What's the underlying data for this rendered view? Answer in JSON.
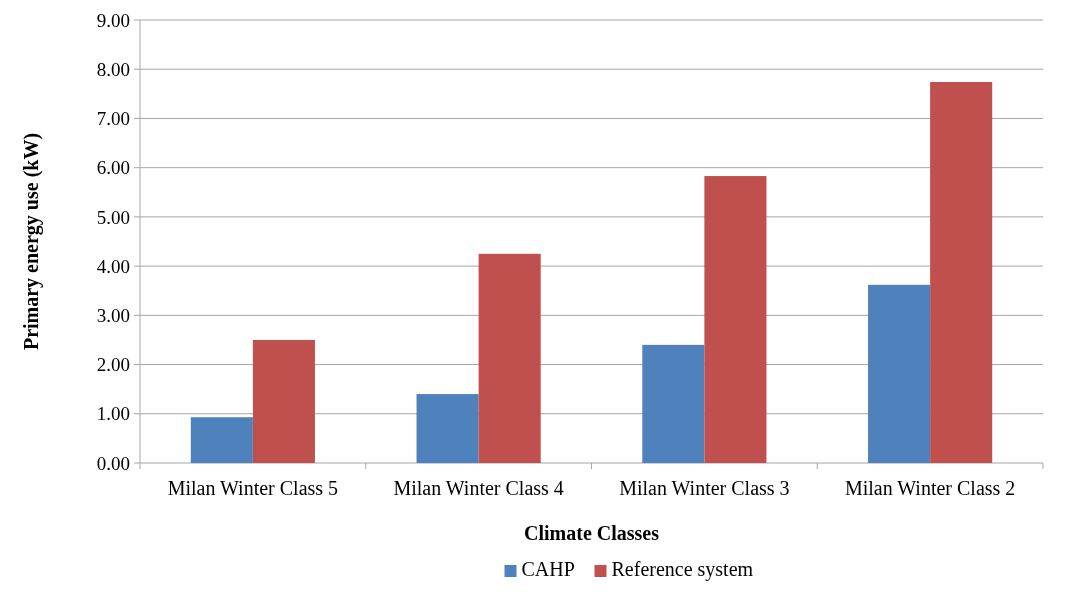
{
  "chart_data": {
    "type": "bar",
    "xlabel": "Climate Classes",
    "ylabel": "Primary energy use (kW)",
    "categories": [
      "Milan Winter Class 5",
      "Milan Winter Class 4",
      "Milan Winter Class 3",
      "Milan Winter Class 2"
    ],
    "series": [
      {
        "name": "CAHP",
        "color": "#4f81bd",
        "values": [
          0.93,
          1.4,
          2.4,
          3.62
        ]
      },
      {
        "name": "Reference system",
        "color": "#c0504d",
        "values": [
          2.5,
          4.25,
          5.83,
          7.74
        ]
      }
    ],
    "ylim": [
      0,
      9
    ],
    "yticks": [
      {
        "value": 0,
        "label": "0.00"
      },
      {
        "value": 1,
        "label": "1.00"
      },
      {
        "value": 2,
        "label": "2.00"
      },
      {
        "value": 3,
        "label": "3.00"
      },
      {
        "value": 4,
        "label": "4.00"
      },
      {
        "value": 5,
        "label": "5.00"
      },
      {
        "value": 6,
        "label": "6.00"
      },
      {
        "value": 7,
        "label": "7.00"
      },
      {
        "value": 8,
        "label": "8.00"
      },
      {
        "value": 9,
        "label": "9.00"
      }
    ],
    "grid": "y",
    "legend": "bottom"
  }
}
